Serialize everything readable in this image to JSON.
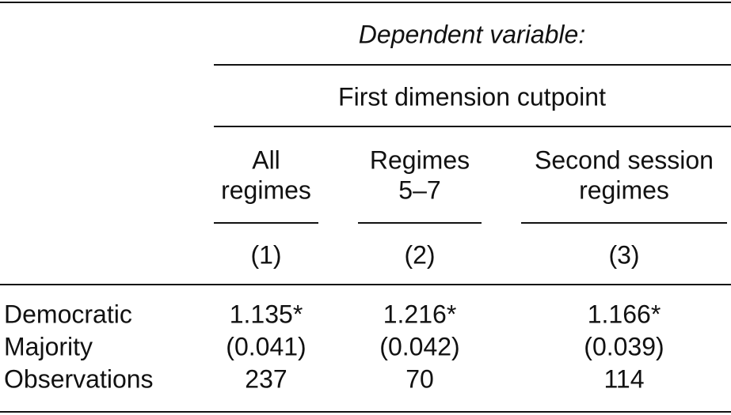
{
  "table": {
    "dependent_label": "Dependent variable:",
    "dependent_name": "First dimension cutpoint",
    "columns": [
      {
        "header_lines": [
          "All",
          "regimes"
        ],
        "number": "(1)"
      },
      {
        "header_lines": [
          "Regimes",
          "5–7"
        ],
        "number": "(2)"
      },
      {
        "header_lines": [
          "Second session",
          "regimes"
        ],
        "number": "(3)"
      }
    ],
    "rows": [
      {
        "label": "Democratic",
        "cells": [
          "1.135*",
          "1.216*",
          "1.166*"
        ]
      },
      {
        "label": "Majority",
        "cells": [
          "(0.041)",
          "(0.042)",
          "(0.039)"
        ]
      },
      {
        "label": "Observations",
        "cells": [
          "237",
          "70",
          "114"
        ]
      }
    ]
  }
}
